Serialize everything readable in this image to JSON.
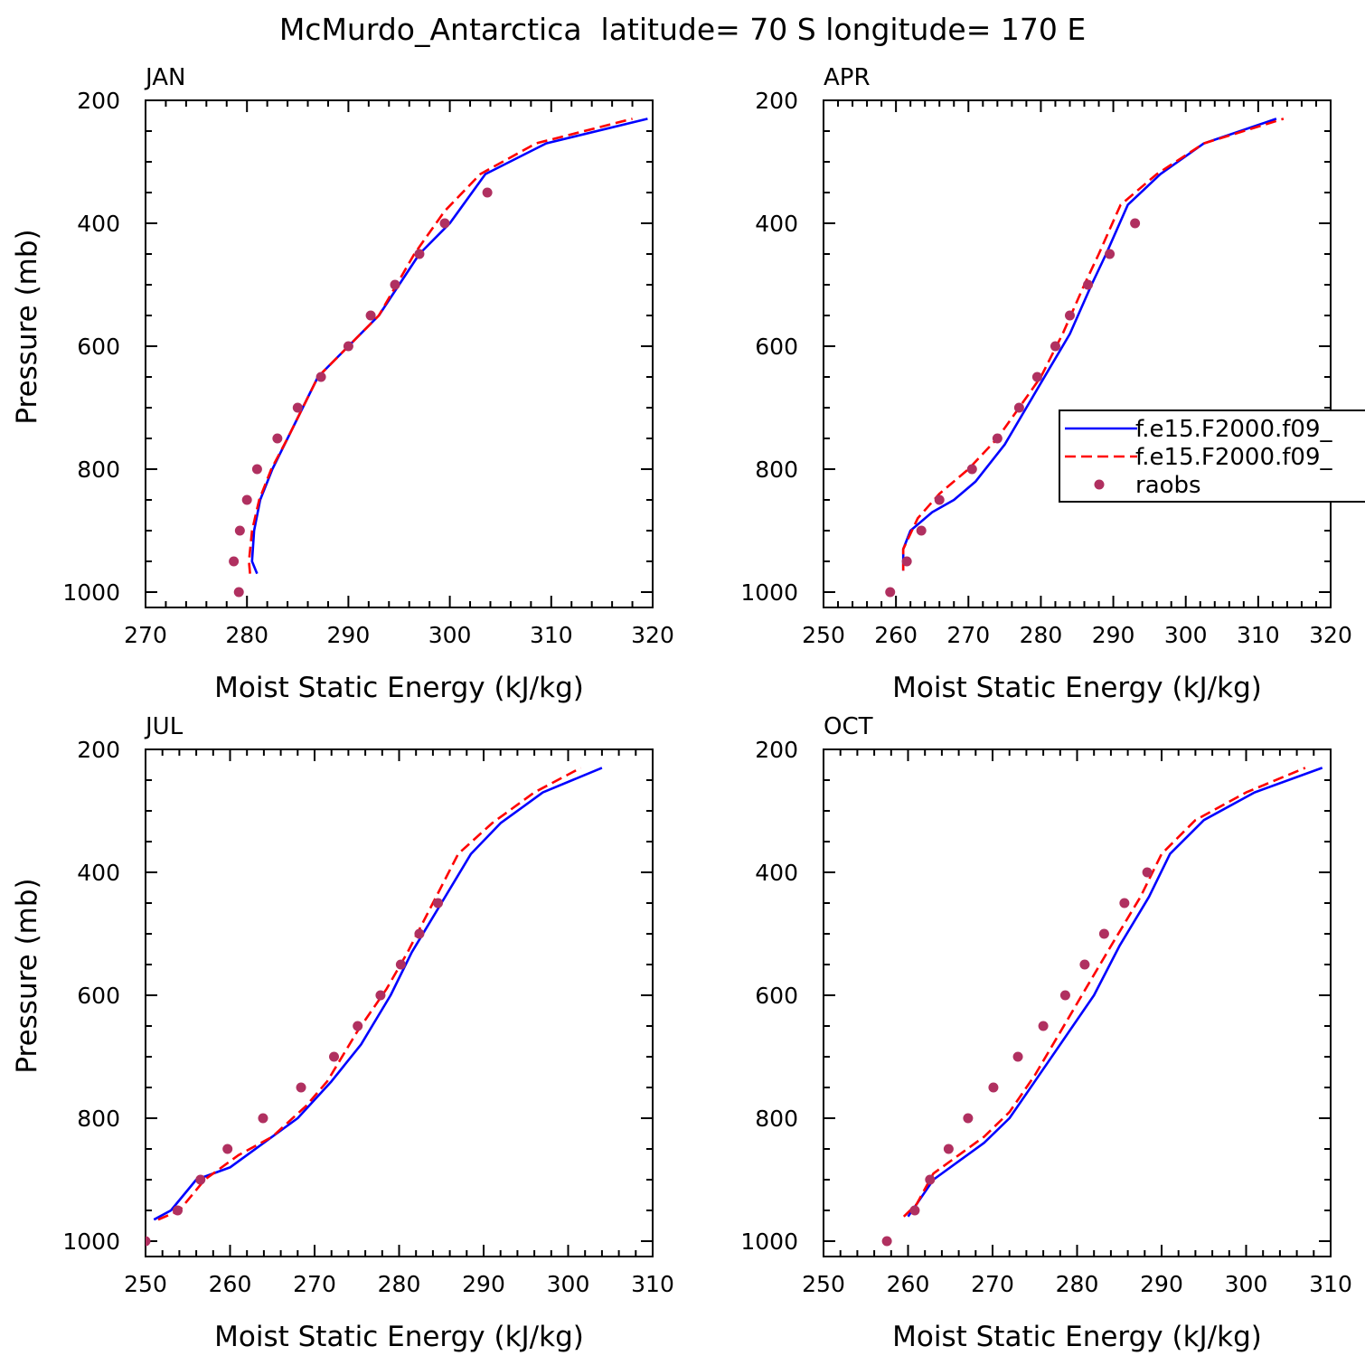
{
  "figure": {
    "title": "McMurdo_Antarctica  latitude= 70 S longitude= 170 E"
  },
  "legend": {
    "placement": "right-middle of APR panel, clipped at figure edge",
    "entries": [
      {
        "label": "f.e15.F2000.f09_",
        "color": "#0000ff",
        "style": "solid"
      },
      {
        "label": "f.e15.F2000.f09_",
        "color": "#ff0000",
        "style": "dashed"
      },
      {
        "label": "raobs",
        "color": "#b03060",
        "style": "marker"
      }
    ]
  },
  "chart_data": [
    {
      "type": "line",
      "title": "JAN",
      "xlabel": "Moist Static Energy (kJ/kg)",
      "ylabel": "Pressure (mb)",
      "xlim": [
        270,
        320
      ],
      "ylim": [
        1000,
        200
      ],
      "xticks": [
        270,
        280,
        290,
        300,
        310,
        320
      ],
      "yticks": [
        200,
        400,
        600,
        800,
        1000
      ],
      "grid": false,
      "series": [
        {
          "color": "#0000ff",
          "style": "solid",
          "x": [
            281,
            280.5,
            280.7,
            281.3,
            282.5,
            284,
            287,
            290,
            293,
            297,
            300,
            303.5,
            309.5,
            319.5
          ],
          "y": [
            970,
            950,
            900,
            850,
            800,
            750,
            650,
            600,
            550,
            450,
            400,
            320,
            270,
            230
          ]
        },
        {
          "color": "#ff0000",
          "style": "dashed",
          "x": [
            280.3,
            280.2,
            280.5,
            281.2,
            282.4,
            284,
            287,
            290,
            293,
            296.5,
            299.5,
            303,
            308.5,
            318
          ],
          "y": [
            970,
            950,
            900,
            850,
            800,
            750,
            650,
            600,
            550,
            450,
            380,
            320,
            270,
            230
          ]
        },
        {
          "color": "#b03060",
          "style": "marker",
          "x": [
            279.2,
            278.7,
            279.3,
            280.0,
            281.0,
            283.0,
            285.0,
            287.3,
            290.0,
            292.2,
            294.6,
            297.0,
            299.5,
            303.7
          ],
          "y": [
            1000,
            950,
            900,
            850,
            800,
            750,
            700,
            650,
            600,
            550,
            500,
            450,
            400,
            350
          ]
        }
      ]
    },
    {
      "type": "line",
      "title": "APR",
      "xlabel": "Moist Static Energy (kJ/kg)",
      "ylabel": "",
      "xlim": [
        250,
        320
      ],
      "ylim": [
        1000,
        200
      ],
      "xticks": [
        250,
        260,
        270,
        280,
        290,
        300,
        310,
        320
      ],
      "yticks": [
        200,
        400,
        600,
        800,
        1000
      ],
      "grid": false,
      "series": [
        {
          "color": "#0000ff",
          "style": "solid",
          "x": [
            261,
            261,
            262,
            265,
            268,
            271,
            275,
            278,
            281,
            284,
            287,
            289,
            292,
            296.5,
            302.5,
            312.5
          ],
          "y": [
            965,
            930,
            900,
            870,
            850,
            820,
            760,
            700,
            640,
            580,
            500,
            450,
            370,
            320,
            270,
            230
          ]
        },
        {
          "color": "#ff0000",
          "style": "dashed",
          "x": [
            261,
            261,
            263,
            266,
            270,
            274,
            277,
            280,
            283,
            286,
            288,
            291,
            296,
            302.5,
            313.5
          ],
          "y": [
            965,
            930,
            880,
            840,
            800,
            750,
            700,
            650,
            580,
            500,
            450,
            370,
            320,
            270,
            230
          ]
        },
        {
          "color": "#b03060",
          "style": "marker",
          "x": [
            259.2,
            261.5,
            263.5,
            266,
            270.5,
            274,
            277,
            279.5,
            282,
            284,
            286.5,
            289.5,
            293
          ],
          "y": [
            1000,
            950,
            900,
            850,
            800,
            750,
            700,
            650,
            600,
            550,
            500,
            450,
            400
          ]
        }
      ]
    },
    {
      "type": "line",
      "title": "JUL",
      "xlabel": "Moist Static Energy (kJ/kg)",
      "ylabel": "Pressure (mb)",
      "xlim": [
        250,
        310
      ],
      "ylim": [
        1000,
        200
      ],
      "xticks": [
        250,
        260,
        270,
        280,
        290,
        300,
        310
      ],
      "yticks": [
        200,
        400,
        600,
        800,
        1000
      ],
      "grid": false,
      "series": [
        {
          "color": "#0000ff",
          "style": "solid",
          "x": [
            251,
            253,
            256,
            260,
            264,
            268,
            272,
            275.5,
            279,
            281.5,
            285,
            288.5,
            292,
            297,
            304
          ],
          "y": [
            965,
            950,
            900,
            880,
            840,
            800,
            740,
            680,
            600,
            530,
            450,
            370,
            320,
            270,
            230
          ]
        },
        {
          "color": "#ff0000",
          "style": "dashed",
          "x": [
            251.5,
            254,
            257,
            261,
            265,
            269,
            271.5,
            275,
            278.5,
            281,
            284,
            287,
            291,
            296,
            301.5
          ],
          "y": [
            965,
            950,
            900,
            860,
            830,
            780,
            740,
            660,
            590,
            530,
            450,
            370,
            320,
            270,
            230
          ]
        },
        {
          "color": "#b03060",
          "style": "marker",
          "x": [
            250.0,
            253.8,
            256.5,
            259.7,
            263.9,
            268.4,
            272.3,
            275.1,
            277.8,
            280.2,
            282.4,
            284.6
          ],
          "y": [
            1000,
            950,
            900,
            850,
            800,
            750,
            700,
            650,
            600,
            550,
            500,
            450
          ]
        }
      ]
    },
    {
      "type": "line",
      "title": "OCT",
      "xlabel": "Moist Static Energy (kJ/kg)",
      "ylabel": "",
      "xlim": [
        250,
        310
      ],
      "ylim": [
        1000,
        200
      ],
      "xticks": [
        250,
        260,
        270,
        280,
        290,
        300,
        310
      ],
      "yticks": [
        200,
        400,
        600,
        800,
        1000
      ],
      "grid": false,
      "series": [
        {
          "color": "#0000ff",
          "style": "solid",
          "x": [
            260,
            261,
            263,
            266,
            269,
            272,
            275,
            278.5,
            282,
            285,
            288.5,
            291,
            295,
            301,
            309
          ],
          "y": [
            960,
            940,
            900,
            870,
            840,
            800,
            740,
            670,
            600,
            520,
            440,
            370,
            315,
            270,
            230
          ]
        },
        {
          "color": "#ff0000",
          "style": "dashed",
          "x": [
            259.5,
            261,
            263,
            266,
            269,
            272,
            275,
            278,
            281,
            284,
            287.5,
            290,
            294,
            300,
            307
          ],
          "y": [
            960,
            940,
            890,
            860,
            830,
            790,
            730,
            660,
            590,
            520,
            440,
            370,
            315,
            270,
            230
          ]
        },
        {
          "color": "#b03060",
          "style": "marker",
          "x": [
            257.5,
            260.8,
            262.6,
            264.8,
            267.1,
            270.1,
            273.0,
            276.0,
            278.6,
            280.9,
            283.2,
            285.6,
            288.3
          ],
          "y": [
            1000,
            950,
            900,
            850,
            800,
            750,
            700,
            650,
            600,
            550,
            500,
            450,
            400
          ]
        }
      ]
    }
  ]
}
